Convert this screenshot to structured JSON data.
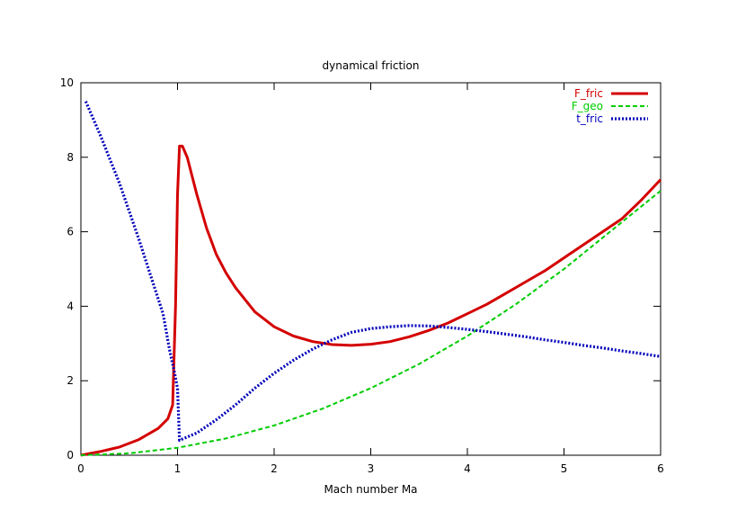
{
  "chart_data": {
    "type": "line",
    "title": "dynamical friction",
    "xlabel": "Mach number Ma",
    "ylabel": "",
    "xlim": [
      0,
      6
    ],
    "ylim": [
      0,
      10
    ],
    "xticks": [
      "0",
      "1",
      "2",
      "3",
      "4",
      "5",
      "6"
    ],
    "yticks": [
      "0",
      "2",
      "4",
      "6",
      "8",
      "10"
    ],
    "grid": false,
    "legend_position": "top-right",
    "series": [
      {
        "name": "F_fric",
        "color": "#d40000",
        "style": "solid",
        "points": [
          [
            0,
            0
          ],
          [
            0.2,
            0.1
          ],
          [
            0.4,
            0.22
          ],
          [
            0.6,
            0.42
          ],
          [
            0.8,
            0.72
          ],
          [
            0.9,
            0.98
          ],
          [
            0.95,
            1.35
          ],
          [
            0.98,
            4.0
          ],
          [
            1.0,
            7.0
          ],
          [
            1.02,
            8.3
          ],
          [
            1.05,
            8.3
          ],
          [
            1.1,
            8.0
          ],
          [
            1.2,
            7.0
          ],
          [
            1.3,
            6.1
          ],
          [
            1.4,
            5.4
          ],
          [
            1.5,
            4.9
          ],
          [
            1.6,
            4.5
          ],
          [
            1.8,
            3.85
          ],
          [
            2.0,
            3.45
          ],
          [
            2.2,
            3.2
          ],
          [
            2.4,
            3.05
          ],
          [
            2.6,
            2.97
          ],
          [
            2.8,
            2.95
          ],
          [
            3.0,
            2.98
          ],
          [
            3.2,
            3.05
          ],
          [
            3.4,
            3.18
          ],
          [
            3.6,
            3.35
          ],
          [
            3.8,
            3.55
          ],
          [
            4.0,
            3.8
          ],
          [
            4.2,
            4.05
          ],
          [
            4.4,
            4.35
          ],
          [
            4.6,
            4.65
          ],
          [
            4.8,
            4.95
          ],
          [
            5.0,
            5.3
          ],
          [
            5.2,
            5.65
          ],
          [
            5.4,
            6.0
          ],
          [
            5.6,
            6.35
          ],
          [
            5.8,
            6.85
          ],
          [
            6.0,
            7.4
          ]
        ]
      },
      {
        "name": "F_geo",
        "color": "#00cc00",
        "style": "dashed",
        "points": [
          [
            0,
            0
          ],
          [
            0.5,
            0.05
          ],
          [
            1.0,
            0.2
          ],
          [
            1.5,
            0.45
          ],
          [
            2.0,
            0.8
          ],
          [
            2.5,
            1.25
          ],
          [
            3.0,
            1.8
          ],
          [
            3.5,
            2.45
          ],
          [
            4.0,
            3.2
          ],
          [
            4.5,
            4.05
          ],
          [
            5.0,
            5.0
          ],
          [
            5.5,
            6.05
          ],
          [
            6.0,
            7.1
          ]
        ]
      },
      {
        "name": "t_fric",
        "color": "#0000bb",
        "style": "dotted",
        "points": [
          [
            0.05,
            9.5
          ],
          [
            0.2,
            8.6
          ],
          [
            0.4,
            7.3
          ],
          [
            0.6,
            5.8
          ],
          [
            0.75,
            4.6
          ],
          [
            0.85,
            3.8
          ],
          [
            0.92,
            2.8
          ],
          [
            0.97,
            2.2
          ],
          [
            1.0,
            1.8
          ],
          [
            1.02,
            0.4
          ],
          [
            1.2,
            0.6
          ],
          [
            1.4,
            0.95
          ],
          [
            1.6,
            1.35
          ],
          [
            1.8,
            1.8
          ],
          [
            2.0,
            2.2
          ],
          [
            2.2,
            2.55
          ],
          [
            2.4,
            2.85
          ],
          [
            2.6,
            3.1
          ],
          [
            2.8,
            3.3
          ],
          [
            3.0,
            3.4
          ],
          [
            3.2,
            3.45
          ],
          [
            3.4,
            3.48
          ],
          [
            3.6,
            3.47
          ],
          [
            3.8,
            3.43
          ],
          [
            4.0,
            3.38
          ],
          [
            4.2,
            3.32
          ],
          [
            4.4,
            3.25
          ],
          [
            4.6,
            3.18
          ],
          [
            4.8,
            3.1
          ],
          [
            5.0,
            3.03
          ],
          [
            5.2,
            2.95
          ],
          [
            5.4,
            2.88
          ],
          [
            5.6,
            2.8
          ],
          [
            5.8,
            2.73
          ],
          [
            6.0,
            2.65
          ]
        ]
      }
    ]
  }
}
